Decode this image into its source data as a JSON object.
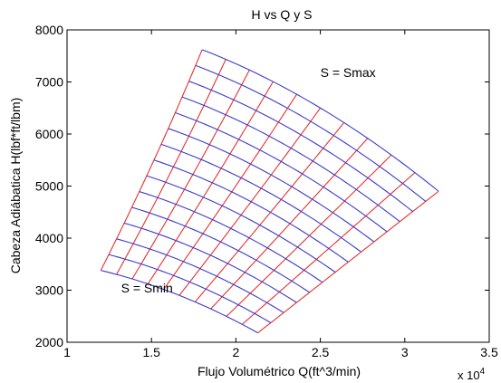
{
  "chart_data": {
    "type": "line",
    "title": "H vs Q y S",
    "xlabel": "Flujo Volumétrico Q(ft^3/min)",
    "ylabel": "Cabeza Adiábatica H(lbf*ft/lbm)",
    "x_multiplier_label": "x 10",
    "x_multiplier_exponent": "4",
    "x_scale": 10000,
    "xlim": [
      1,
      3.5
    ],
    "ylim": [
      2000,
      8000
    ],
    "x_ticks": [
      1,
      1.5,
      2,
      2.5,
      3,
      3.5
    ],
    "x_tick_labels": [
      "1",
      "1.5",
      "2",
      "2.5",
      "3",
      "3.5"
    ],
    "y_ticks": [
      2000,
      3000,
      4000,
      5000,
      6000,
      7000,
      8000
    ],
    "y_tick_labels": [
      "2000",
      "3000",
      "4000",
      "5000",
      "6000",
      "7000",
      "8000"
    ],
    "grid": false,
    "annotations": [
      {
        "text": "S = Smax",
        "x": 2.5,
        "y": 7100
      },
      {
        "text": "S = Smin",
        "x": 1.32,
        "y": 2960
      }
    ],
    "corners": {
      "smin_qlow": [
        1.2,
        3380
      ],
      "smin_qhigh": [
        2.13,
        2180
      ],
      "smax_qlow": [
        1.8,
        7620
      ],
      "smax_qhigh": [
        3.2,
        4900
      ]
    },
    "speed_curve_count": 15,
    "flow_line_count": 11,
    "speed_curve_color": "#3a3acd",
    "flow_line_color": "#e83030"
  }
}
